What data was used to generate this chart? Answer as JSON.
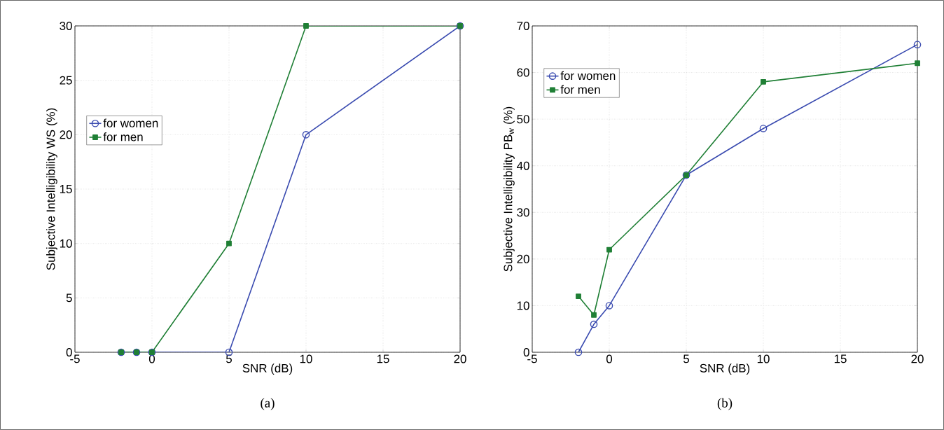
{
  "chart_data": [
    {
      "type": "line",
      "xlabel": "SNR (dB)",
      "ylabel": "Subjective Intelligibility WS (%)",
      "x": [
        -2,
        -1,
        0,
        5,
        10,
        20
      ],
      "xlim": [
        -5,
        20
      ],
      "xticks": [
        -5,
        0,
        5,
        10,
        15,
        20
      ],
      "ylim": [
        0,
        30
      ],
      "yticks": [
        0,
        5,
        10,
        15,
        20,
        25,
        30
      ],
      "grid": true,
      "legend": "left",
      "annotations": [
        "(a)"
      ],
      "series": [
        {
          "name": "for women",
          "color": "#3a4bb0",
          "marker": "circle",
          "values": [
            0,
            0,
            0,
            0,
            20,
            30
          ]
        },
        {
          "name": "for men",
          "color": "#1f7f35",
          "marker": "square",
          "values": [
            0,
            0,
            0,
            10,
            30,
            30
          ]
        }
      ]
    },
    {
      "type": "line",
      "xlabel": "SNR (dB)",
      "ylabel": "Subjective Intelligibility PB$_{w}$ (%)",
      "x": [
        -2,
        -1,
        0,
        5,
        10,
        20
      ],
      "xlim": [
        -5,
        20
      ],
      "xticks": [
        -5,
        0,
        5,
        10,
        15,
        20
      ],
      "ylim": [
        0,
        70
      ],
      "yticks": [
        0,
        10,
        20,
        30,
        40,
        50,
        60,
        70
      ],
      "grid": true,
      "legend": "top left",
      "annotations": [
        "(b)"
      ],
      "series": [
        {
          "name": "for women",
          "color": "#3a4bb0",
          "marker": "circle",
          "values": [
            0,
            6,
            10,
            38,
            48,
            66
          ]
        },
        {
          "name": "for men",
          "color": "#1f7f35",
          "marker": "square",
          "values": [
            12,
            8,
            22,
            38,
            58,
            62
          ]
        }
      ]
    }
  ]
}
